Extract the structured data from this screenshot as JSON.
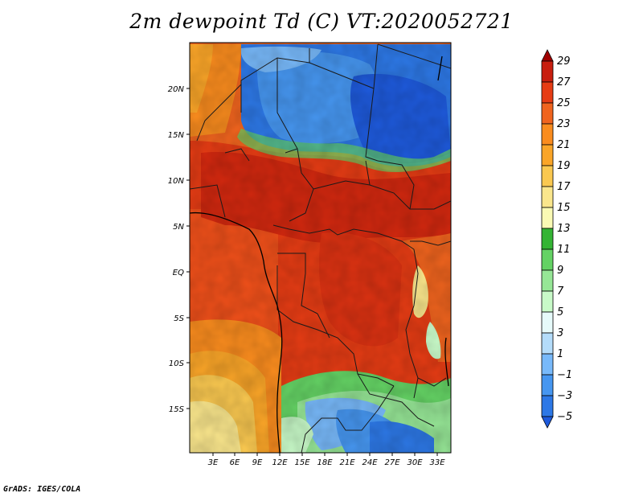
{
  "title": "2m dewpoint Td (C) VT:2020052721",
  "footer": "GrADS: IGES/COLA",
  "map": {
    "lat_ticks": [
      "20N",
      "15N",
      "10N",
      "5N",
      "EQ",
      "5S",
      "10S",
      "15S"
    ],
    "lon_ticks": [
      "3E",
      "6E",
      "9E",
      "12E",
      "15E",
      "18E",
      "21E",
      "24E",
      "27E",
      "30E",
      "33E"
    ]
  },
  "colorbar": {
    "labels": [
      "29",
      "27",
      "25",
      "23",
      "21",
      "19",
      "17",
      "15",
      "13",
      "11",
      "9",
      "7",
      "5",
      "3",
      "1",
      "−1",
      "−3",
      "−5"
    ],
    "colors": [
      "#a00000",
      "#c81e0f",
      "#e63c14",
      "#f0641e",
      "#fa8c1e",
      "#faa528",
      "#fac850",
      "#fae68c",
      "#fafab4",
      "#34b434",
      "#64d264",
      "#96e696",
      "#c8fac8",
      "#e6fafa",
      "#b4dcfa",
      "#78b9fa",
      "#4696f0",
      "#2d78e6",
      "#1e5adc"
    ]
  }
}
